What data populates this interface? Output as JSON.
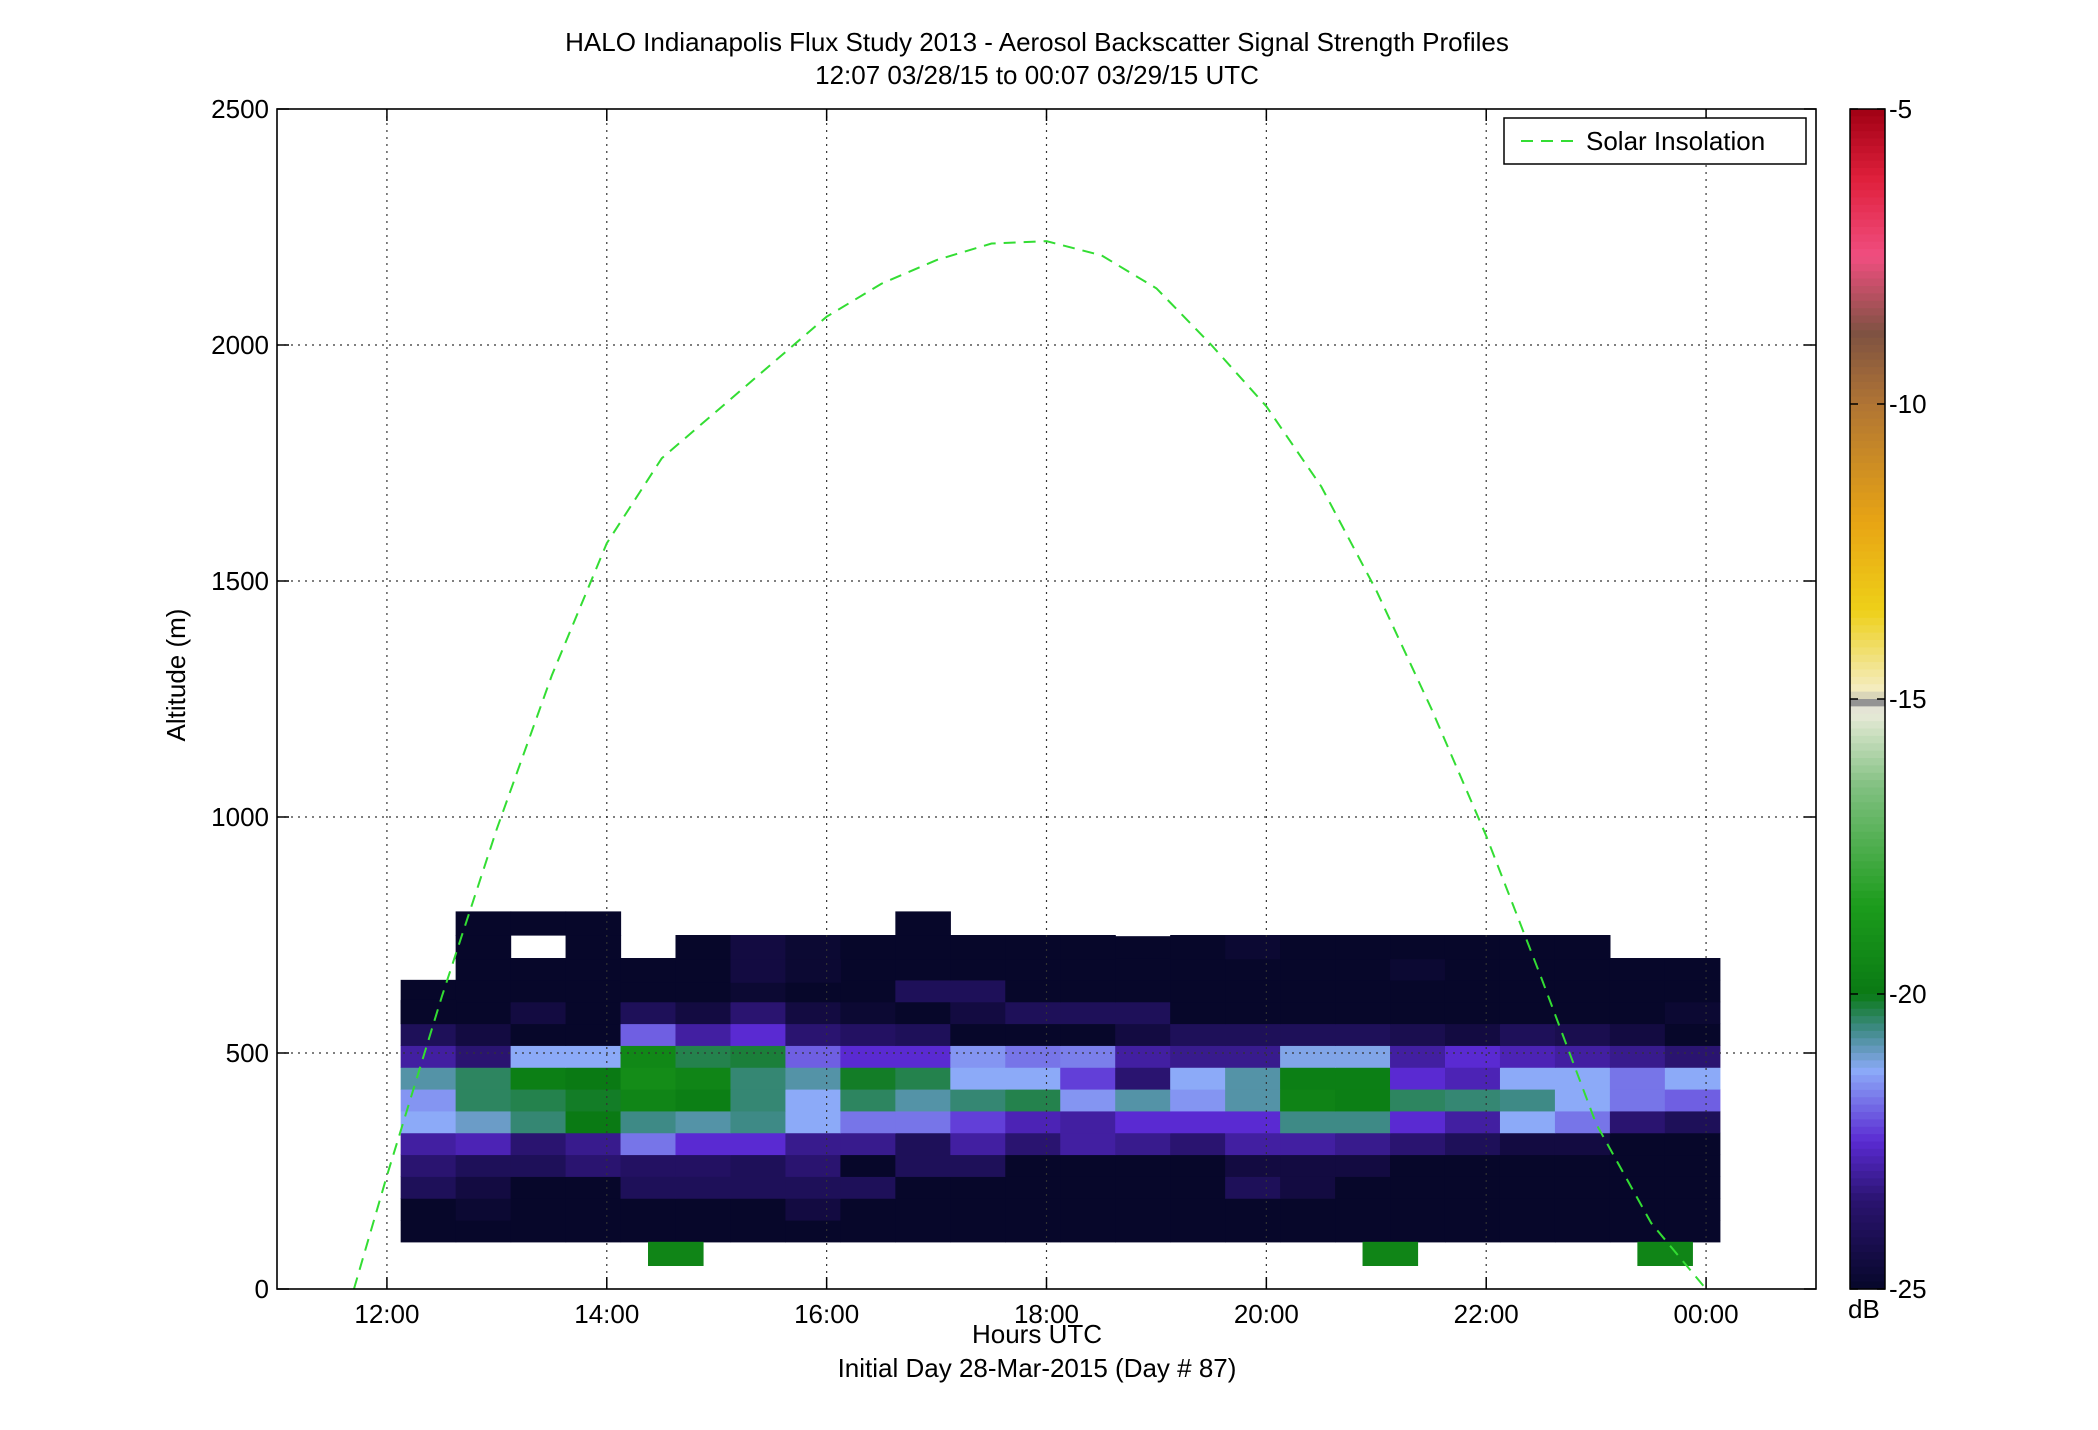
{
  "figure": {
    "title_line1": "HALO Indianapolis Flux Study 2013 - Aerosol Backscatter Signal Strength Profiles",
    "title_line2": "12:07 03/28/15 to 00:07 03/29/15  UTC",
    "xlabel": "Hours UTC",
    "xlabel2": "Initial Day 28-Mar-2015 (Day # 87)",
    "ylabel": "Altitude (m)",
    "colorbar_unit": "dB",
    "legend_entry": "Solar Insolation"
  },
  "chart_data": {
    "type": "heatmap",
    "xlim": [
      11.0,
      25.0
    ],
    "ylim": [
      0,
      2500
    ],
    "x_ticks": [
      12,
      14,
      16,
      18,
      20,
      22,
      24
    ],
    "x_tick_labels": [
      "12:00",
      "14:00",
      "16:00",
      "18:00",
      "20:00",
      "22:00",
      "00:00"
    ],
    "y_ticks": [
      0,
      500,
      1000,
      1500,
      2000,
      2500
    ],
    "y_tick_labels": [
      "0",
      "500",
      "1000",
      "1500",
      "2000",
      "2500"
    ],
    "grid": true,
    "legend_position": "top-right",
    "colorbar": {
      "range": [
        -25,
        -5
      ],
      "ticks": [
        -5,
        -10,
        -15,
        -20,
        -25
      ],
      "tick_labels": [
        "-5",
        "-10",
        "-15",
        "-20",
        "-25"
      ],
      "stops": [
        {
          "v": -25,
          "c": "#07072a"
        },
        {
          "v": -23.5,
          "c": "#2a1470"
        },
        {
          "v": -22.5,
          "c": "#5a2ad2"
        },
        {
          "v": -21.3,
          "c": "#8caaf8"
        },
        {
          "v": -20.6,
          "c": "#3e8a86"
        },
        {
          "v": -20,
          "c": "#0a7a14"
        },
        {
          "v": -18.5,
          "c": "#1c9c1c"
        },
        {
          "v": -16.5,
          "c": "#80c080"
        },
        {
          "v": -15.2,
          "c": "#ececdc"
        },
        {
          "v": -15.05,
          "c": "#8c8c8c"
        },
        {
          "v": -14.9,
          "c": "#f4eec8"
        },
        {
          "v": -13.5,
          "c": "#eed018"
        },
        {
          "v": -12,
          "c": "#e8a414"
        },
        {
          "v": -10,
          "c": "#b07434"
        },
        {
          "v": -8.8,
          "c": "#7e5242"
        },
        {
          "v": -7.5,
          "c": "#f04e80"
        },
        {
          "v": -6.2,
          "c": "#e0203c"
        },
        {
          "v": -5,
          "c": "#a00014"
        }
      ]
    },
    "heatmap": {
      "x_start": 12.125,
      "x_step": 0.5,
      "y_start": 100,
      "y_step": 46.25,
      "x_count": 24,
      "y_count": 14,
      "nodata_symbol": null,
      "values_dB": [
        [
          -25,
          -25,
          -25,
          -25,
          -25,
          -25,
          -25,
          -25,
          -25,
          -25,
          -25,
          -25,
          -25,
          -25,
          -25,
          -25,
          -25,
          -25,
          -25,
          -25,
          -25,
          -25,
          -25,
          -25
        ],
        [
          -25,
          -24.8,
          -25,
          -25,
          -25,
          -25,
          -25,
          -24.5,
          -25,
          -25,
          -25,
          -25,
          -25,
          -25,
          -25,
          -25,
          -25,
          -25,
          -25,
          -25,
          -25,
          -25,
          -25,
          -25
        ],
        [
          -24,
          -24.5,
          -25,
          -25,
          -24,
          -24,
          -24,
          -24,
          -24,
          -25,
          -25,
          -25,
          -25,
          -25,
          -25,
          -24,
          -24.5,
          -25,
          -25,
          -25,
          -25,
          -25,
          -25,
          -25
        ],
        [
          -23.5,
          -24,
          -24,
          -23.5,
          -23.8,
          -23.8,
          -24,
          -23.5,
          -25,
          -24,
          -24,
          -25,
          -25,
          -25,
          -25,
          -24.5,
          -24.5,
          -24.5,
          -25,
          -25,
          -25,
          -25,
          -25,
          -25
        ],
        [
          -23,
          -22.8,
          -23.5,
          -23.2,
          -21.8,
          -22.5,
          -22.5,
          -23.2,
          -23.2,
          -24,
          -23,
          -23.5,
          -23,
          -23.2,
          -23.5,
          -23,
          -23,
          -23.2,
          -23.5,
          -24,
          -24.5,
          -24.5,
          -25,
          -25
        ],
        [
          -21.3,
          -21,
          -20.5,
          -20,
          -20.6,
          -20.8,
          -20.6,
          -21.3,
          -21.8,
          -21.8,
          -22.3,
          -22.8,
          -23,
          -22.5,
          -22.5,
          -22.5,
          -20.6,
          -20.6,
          -22.5,
          -23,
          -21.3,
          -21.8,
          -23.5,
          -24
        ],
        [
          -21.5,
          -20.4,
          -20.3,
          -20.1,
          -19.5,
          -19.8,
          -20.5,
          -21.3,
          -20.4,
          -20.8,
          -20.5,
          -20.3,
          -21.5,
          -20.8,
          -21.5,
          -20.8,
          -19.6,
          -19.8,
          -20.4,
          -20.5,
          -20.6,
          -21.3,
          -21.8,
          -22
        ],
        [
          -20.8,
          -20.4,
          -19.8,
          -20,
          -19.2,
          -19.5,
          -20.5,
          -20.8,
          -20.1,
          -20.3,
          -21.3,
          -21.3,
          -22.3,
          -23.5,
          -21.3,
          -20.8,
          -19.8,
          -19.8,
          -22.5,
          -22.8,
          -21.3,
          -21.3,
          -21.8,
          -21.3
        ],
        [
          -23,
          -23.5,
          -21.3,
          -21.3,
          -19.4,
          -20.3,
          -20.2,
          -22,
          -22.5,
          -22.5,
          -21.5,
          -21.8,
          -21.7,
          -23,
          -23.2,
          -23.2,
          -21.2,
          -21.2,
          -23,
          -22.5,
          -22.8,
          -23,
          -23.2,
          -23.5
        ],
        [
          -24,
          -24.5,
          -25,
          -25,
          -22,
          -23,
          -22.5,
          -23.5,
          -23.8,
          -24,
          -25,
          -25,
          -25,
          -24.5,
          -24,
          -24,
          -24,
          -24,
          -24.2,
          -24.5,
          -24,
          -24.2,
          -24.5,
          -25
        ],
        [
          -25,
          -25,
          -24.5,
          -25,
          -24,
          -24.5,
          -23.5,
          -24.5,
          -24.8,
          -25,
          -24.5,
          -24,
          -24,
          -24,
          -25,
          -25,
          -25,
          -25,
          -25,
          -25,
          -25,
          -25,
          -25,
          -24.8
        ],
        [
          -25,
          -25,
          -25,
          -25,
          -25,
          -25,
          -24.8,
          -25,
          -25,
          -24,
          -24,
          -25,
          -25,
          -25,
          -25,
          -25,
          -25,
          -25,
          -25,
          -25,
          -25,
          -25,
          -25,
          -25
        ],
        [
          null,
          -25,
          -25,
          -25,
          -25,
          -25,
          -25,
          -25,
          -25,
          -25,
          -25,
          -25,
          -25,
          -25,
          -25,
          -25,
          -25,
          -25,
          -24.8,
          -25,
          -25,
          -25,
          -25,
          -25
        ],
        [
          null,
          null,
          null,
          null,
          null,
          null,
          -25,
          -25,
          -25,
          -25,
          -25,
          -25,
          -25,
          -25,
          -25,
          -25,
          -25,
          -25,
          -25,
          -25,
          -25,
          -25,
          null,
          null
        ]
      ],
      "extra_cells": [
        {
          "x": 12.125,
          "y": 562.5,
          "v": -25
        },
        {
          "x": 12.625,
          "y": 700,
          "v": -25
        },
        {
          "x": 12.625,
          "y": 750,
          "v": -25
        },
        {
          "x": 13.125,
          "y": 750,
          "v": -25
        },
        {
          "x": 13.625,
          "y": 700,
          "v": -25
        },
        {
          "x": 13.625,
          "y": 750,
          "v": -25
        },
        {
          "x": 14.125,
          "y": 650,
          "v": -25
        },
        {
          "x": 14.625,
          "y": 650,
          "v": -25
        },
        {
          "x": 14.625,
          "y": 700,
          "v": -25
        },
        {
          "x": 15.125,
          "y": 650,
          "v": -24.5
        },
        {
          "x": 15.125,
          "y": 700,
          "v": -24.5
        },
        {
          "x": 15.625,
          "y": 650,
          "v": -24.8
        },
        {
          "x": 15.625,
          "y": 700,
          "v": -24.8
        },
        {
          "x": 16.125,
          "y": 700,
          "v": -25
        },
        {
          "x": 16.625,
          "y": 700,
          "v": -25
        },
        {
          "x": 16.625,
          "y": 750,
          "v": -25
        },
        {
          "x": 17.125,
          "y": 700,
          "v": -25
        },
        {
          "x": 17.625,
          "y": 700,
          "v": -25
        },
        {
          "x": 18.125,
          "y": 700,
          "v": -25
        },
        {
          "x": 19.125,
          "y": 700,
          "v": -25
        },
        {
          "x": 19.625,
          "y": 700,
          "v": -24.8
        },
        {
          "x": 20.125,
          "y": 700,
          "v": -25
        },
        {
          "x": 20.625,
          "y": 700,
          "v": -25
        },
        {
          "x": 21.125,
          "y": 700,
          "v": -25
        },
        {
          "x": 21.625,
          "y": 700,
          "v": -25
        },
        {
          "x": 22.125,
          "y": 700,
          "v": -25
        },
        {
          "x": 22.625,
          "y": 700,
          "v": -25
        },
        {
          "x": 14.375,
          "y": 50,
          "v": -19.5
        },
        {
          "x": 20.875,
          "y": 50,
          "v": -19.5
        },
        {
          "x": 23.375,
          "y": 50,
          "v": -19.5
        }
      ]
    },
    "series": [
      {
        "name": "Solar Insolation",
        "style": "dashed",
        "color": "#33dd33",
        "x": [
          11.7,
          12.0,
          12.5,
          13.0,
          13.5,
          14.0,
          14.5,
          15.0,
          15.5,
          16.0,
          16.5,
          17.0,
          17.5,
          18.0,
          18.5,
          19.0,
          19.5,
          20.0,
          20.5,
          21.0,
          21.5,
          22.0,
          22.5,
          23.0,
          23.5,
          24.0
        ],
        "y": [
          0,
          240,
          620,
          975,
          1300,
          1580,
          1760,
          1860,
          1960,
          2060,
          2130,
          2180,
          2215,
          2220,
          2190,
          2120,
          2000,
          1870,
          1700,
          1480,
          1230,
          960,
          660,
          350,
          140,
          0
        ]
      }
    ]
  }
}
